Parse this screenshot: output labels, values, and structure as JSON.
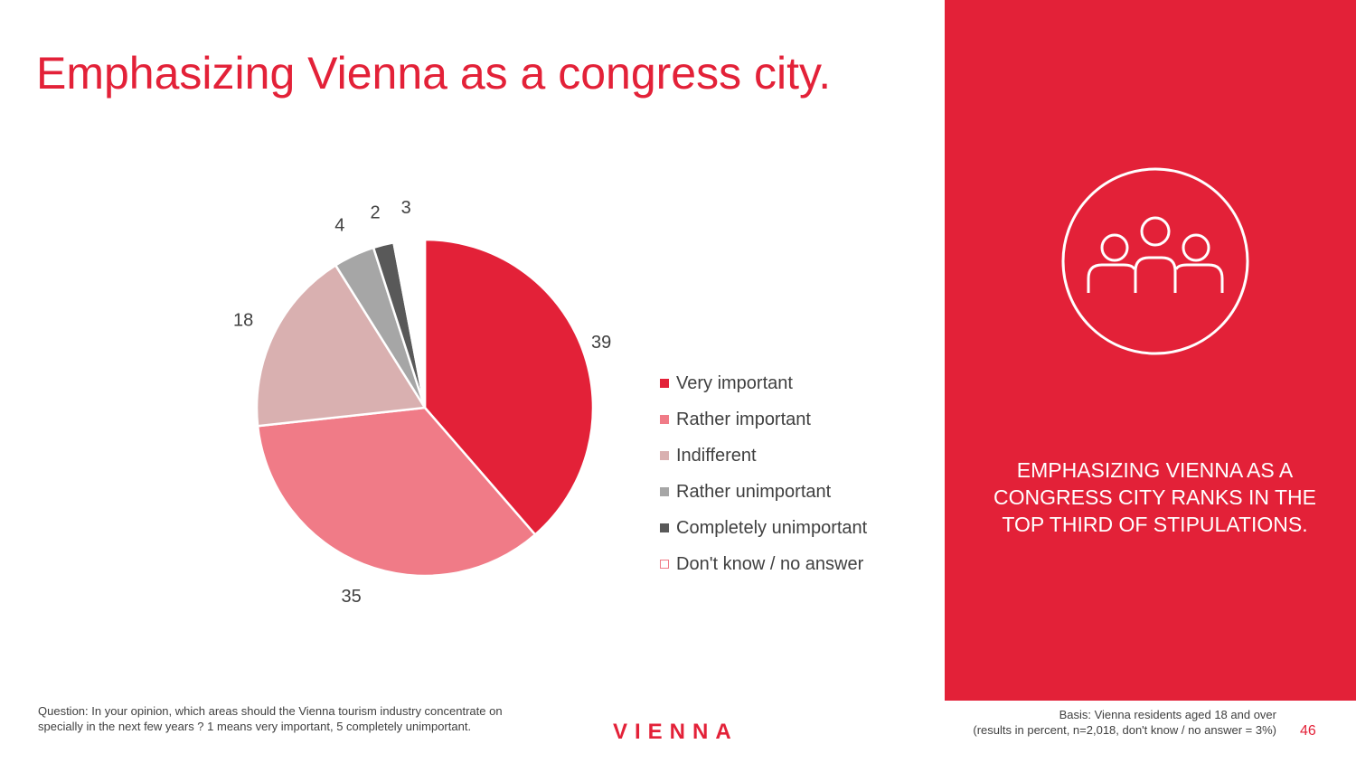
{
  "title": "Emphasizing Vienna as a congress city.",
  "chart_data": {
    "type": "pie",
    "title": "",
    "categories": [
      "Very important",
      "Rather important",
      "Indifferent",
      "Rather unimportant",
      "Completely unimportant",
      "Don't know / no answer"
    ],
    "values": [
      39,
      35,
      18,
      4,
      2,
      3
    ],
    "colors": [
      "#e32138",
      "#f07b87",
      "#d9b0b0",
      "#a6a6a6",
      "#595959",
      "#ffffff"
    ],
    "legend_position": "right",
    "start_angle": "12 o'clock",
    "direction": "clockwise"
  },
  "panel": {
    "icon": "group-people-icon",
    "text": "EMPHASIZING VIENNA AS A CONGRESS CITY RANKS IN THE TOP THIRD OF STIPULATIONS."
  },
  "footer": {
    "question": "Question: In your opinion, which areas should the Vienna tourism industry concentrate on specially in the next few years ? 1 means very important, 5 completely unimportant.",
    "logo": "VIENNA",
    "basis_line1": "Basis: Vienna residents aged 18 and over",
    "basis_line2": "(results in percent, n=2,018, don't know / no answer = 3%)",
    "page_number": "46"
  },
  "colors": {
    "accent": "#e32138"
  }
}
